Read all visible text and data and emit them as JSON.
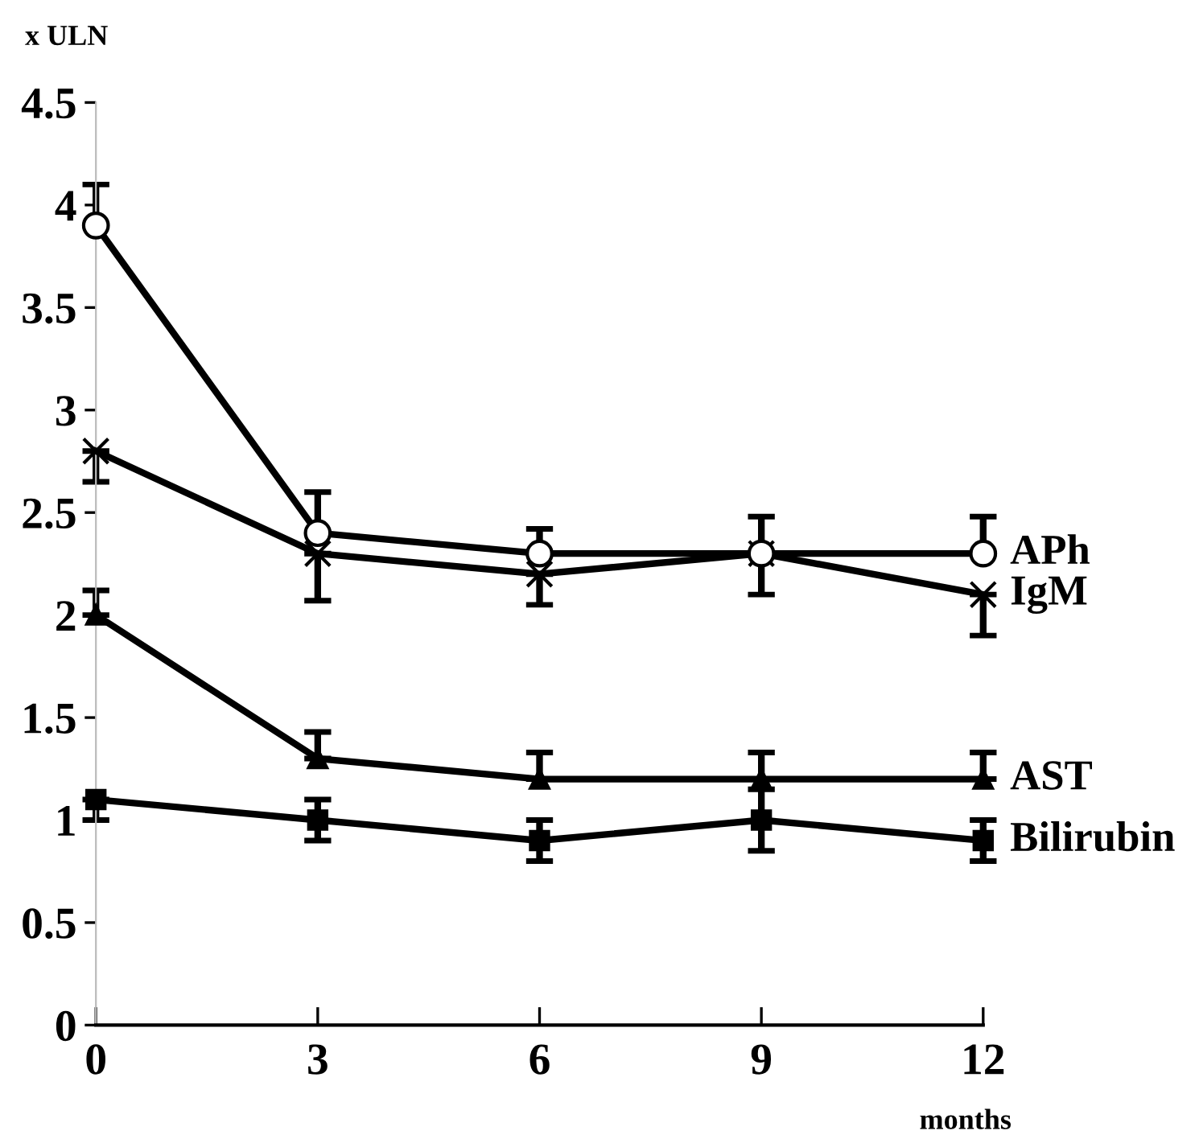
{
  "chart_data": {
    "type": "line",
    "ylabel": "x ULN",
    "xlabel": "months",
    "x": [
      0,
      3,
      6,
      9,
      12
    ],
    "xlim": [
      0,
      12
    ],
    "xticks": [
      0,
      3,
      6,
      9,
      12
    ],
    "ylim": [
      0,
      4.5
    ],
    "yticks": [
      0,
      0.5,
      1,
      1.5,
      2,
      2.5,
      3,
      3.5,
      4,
      4.5
    ],
    "grid": false,
    "legend": false,
    "line_style": "solid",
    "series": [
      {
        "name": "APh",
        "color": "#000000",
        "marker": "circle",
        "values": [
          3.9,
          2.4,
          2.3,
          2.3,
          2.3
        ],
        "errors": [
          [
            3.9,
            4.1
          ],
          [
            2.4,
            2.6
          ],
          [
            2.3,
            2.42
          ],
          [
            2.3,
            2.48
          ],
          [
            2.3,
            2.48
          ]
        ]
      },
      {
        "name": "IgM",
        "color": "#000000",
        "marker": "cross",
        "values": [
          2.8,
          2.3,
          2.2,
          2.3,
          2.1
        ],
        "errors": [
          [
            2.65,
            2.8
          ],
          [
            2.07,
            2.3
          ],
          [
            2.05,
            2.2
          ],
          [
            2.1,
            2.3
          ],
          [
            1.9,
            2.1
          ]
        ]
      },
      {
        "name": "AST",
        "color": "#000000",
        "marker": "triangle",
        "values": [
          2.0,
          1.3,
          1.2,
          1.2,
          1.2
        ],
        "errors": [
          [
            2.0,
            2.12
          ],
          [
            1.3,
            1.43
          ],
          [
            1.2,
            1.33
          ],
          [
            1.2,
            1.33
          ],
          [
            1.2,
            1.33
          ]
        ]
      },
      {
        "name": "Bilirubin",
        "color": "#000000",
        "marker": "square",
        "values": [
          1.1,
          1.0,
          0.9,
          1.0,
          0.9
        ],
        "errors": [
          [
            1.0,
            1.1
          ],
          [
            0.9,
            1.1
          ],
          [
            0.8,
            1.0
          ],
          [
            0.85,
            1.15
          ],
          [
            0.8,
            1.0
          ]
        ]
      }
    ]
  }
}
